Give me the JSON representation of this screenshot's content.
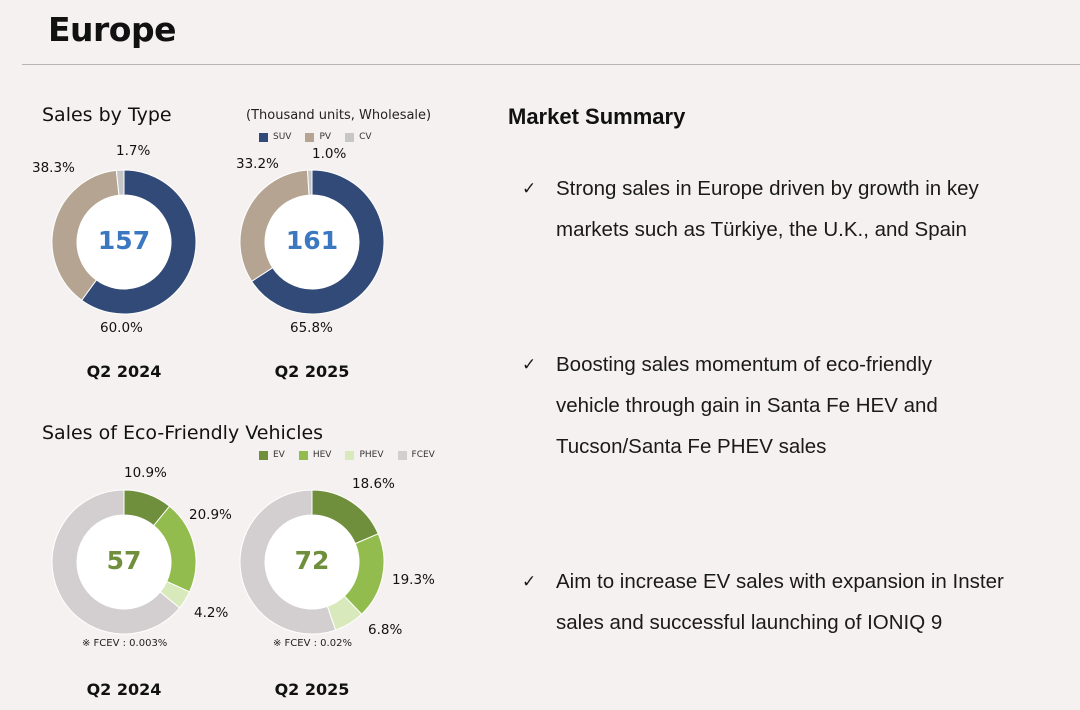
{
  "header": {
    "title": "Europe"
  },
  "sales_by_type": {
    "title": "Sales by Type",
    "unit_note": "(Thousand units, Wholesale)",
    "legend": [
      {
        "label": "SUV",
        "color": "#324a77"
      },
      {
        "label": "PV",
        "color": "#b5a491"
      },
      {
        "label": "CV",
        "color": "#c6c6c6"
      }
    ],
    "charts": [
      {
        "quarter": "Q2 2024",
        "total": "157",
        "labels": [
          "60.0%",
          "38.3%",
          "1.7%"
        ]
      },
      {
        "quarter": "Q2 2025",
        "total": "161",
        "labels": [
          "65.8%",
          "33.2%",
          "1.0%"
        ]
      }
    ]
  },
  "eco_friendly": {
    "title": "Sales of Eco-Friendly Vehicles",
    "legend": [
      {
        "label": "EV",
        "color": "#6f8f3d"
      },
      {
        "label": "HEV",
        "color": "#92bc4e"
      },
      {
        "label": "PHEV",
        "color": "#d8eabc"
      },
      {
        "label": "FCEV",
        "color": "#d3cfd0"
      }
    ],
    "charts": [
      {
        "quarter": "Q2 2024",
        "total": "57",
        "labels": [
          "10.9%",
          "20.9%",
          "4.2%"
        ],
        "footnote": "※ FCEV : 0.003%"
      },
      {
        "quarter": "Q2 2025",
        "total": "72",
        "labels": [
          "18.6%",
          "19.3%",
          "6.8%"
        ],
        "footnote": "※ FCEV : 0.02%"
      }
    ]
  },
  "market_summary": {
    "title": "Market Summary",
    "check_glyph": "✓",
    "bullets": [
      {
        "lines": [
          "Strong sales in Europe driven by growth in key",
          "markets such as Türkiye, the U.K., and Spain"
        ]
      },
      {
        "lines": [
          "Boosting sales momentum of eco-friendly",
          "vehicle through gain in Santa Fe HEV and",
          "Tucson/Santa Fe PHEV sales"
        ]
      },
      {
        "lines": [
          "Aim to increase EV sales with expansion in Inster",
          "sales and successful launching of IONIQ 9"
        ]
      }
    ]
  },
  "chart_data": [
    {
      "type": "pie",
      "title": "Sales by Type",
      "subtitle": "Q2 2024",
      "total": 157,
      "categories": [
        "SUV",
        "PV",
        "CV"
      ],
      "values": [
        60.0,
        38.3,
        1.7
      ],
      "colors": [
        "#324a77",
        "#b5a491",
        "#c6c6c6"
      ],
      "center_color": "#3c78c0"
    },
    {
      "type": "pie",
      "title": "Sales by Type",
      "subtitle": "Q2 2025",
      "total": 161,
      "categories": [
        "SUV",
        "PV",
        "CV"
      ],
      "values": [
        65.8,
        33.2,
        1.0
      ],
      "colors": [
        "#324a77",
        "#b5a491",
        "#c6c6c6"
      ],
      "center_color": "#3c78c0"
    },
    {
      "type": "pie",
      "title": "Sales of Eco-Friendly Vehicles",
      "subtitle": "Q2 2024",
      "total": 57,
      "categories": [
        "EV",
        "HEV",
        "PHEV",
        "FCEV"
      ],
      "values": [
        10.9,
        20.9,
        4.2,
        0.003
      ],
      "colors": [
        "#6f8f3d",
        "#92bc4e",
        "#d8eabc",
        "#d3cfd0"
      ],
      "center_color": "#6f8f3d"
    },
    {
      "type": "pie",
      "title": "Sales of Eco-Friendly Vehicles",
      "subtitle": "Q2 2025",
      "total": 72,
      "categories": [
        "EV",
        "HEV",
        "PHEV",
        "FCEV"
      ],
      "values": [
        18.6,
        19.3,
        6.8,
        0.02
      ],
      "colors": [
        "#6f8f3d",
        "#92bc4e",
        "#d8eabc",
        "#d3cfd0"
      ],
      "center_color": "#6f8f3d"
    }
  ]
}
